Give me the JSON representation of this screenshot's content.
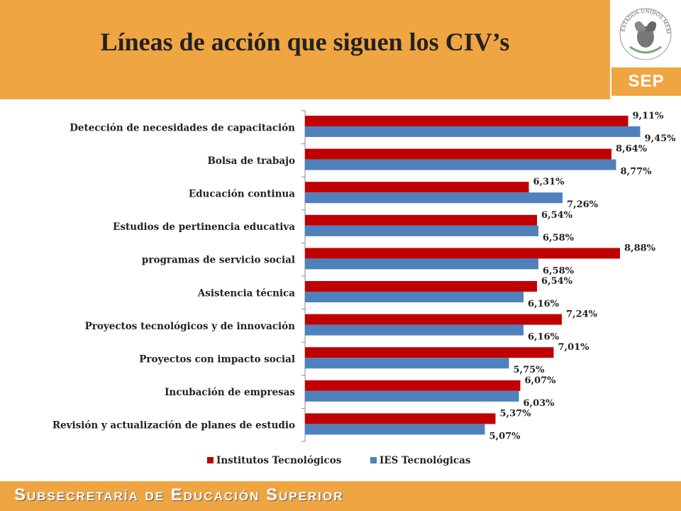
{
  "title": "Líneas de acción que siguen los CIV’s",
  "logo": {
    "emblem_text": "ESTADOS UNIDOS MEXICANOS",
    "sep_label": "SEP"
  },
  "footer": {
    "text": "Subsecretaría de Educación Superior"
  },
  "colors": {
    "header": "#F0A543",
    "series1": "#C00000",
    "series2": "#4F81BD"
  },
  "chart_data": {
    "type": "bar",
    "orientation": "horizontal",
    "categories": [
      "Detección de necesidades de capacitación",
      "Bolsa de trabajo",
      "Educación continua",
      "Estudios de pertinencia educativa",
      "programas de servicio social",
      "Asistencia técnica",
      "Proyectos tecnológicos y de innovación",
      "Proyectos con impacto social",
      "Incubación de empresas",
      "Revisión y actualización de planes de estudio"
    ],
    "series": [
      {
        "name": "Institutos Tecnológicos",
        "color": "#C00000",
        "values": [
          9.11,
          8.64,
          6.31,
          6.54,
          8.88,
          6.54,
          7.24,
          7.01,
          6.07,
          5.37
        ],
        "labels": [
          "9,11%",
          "8,64%",
          "6,31%",
          "6,54%",
          "8,88%",
          "6,54%",
          "7,24%",
          "7,01%",
          "6,07%",
          "5,37%"
        ]
      },
      {
        "name": "IES Tecnológicas",
        "color": "#4F81BD",
        "values": [
          9.45,
          8.77,
          7.26,
          6.58,
          6.58,
          6.16,
          6.16,
          5.75,
          6.03,
          5.07
        ],
        "labels": [
          "9,45%",
          "8,77%",
          "7,26%",
          "6,58%",
          "6,58%",
          "6,16%",
          "6,16%",
          "5,75%",
          "6,03%",
          "5,07%"
        ]
      }
    ],
    "xlim": [
      0,
      9.6
    ],
    "grid": false,
    "legend": "bottom"
  }
}
